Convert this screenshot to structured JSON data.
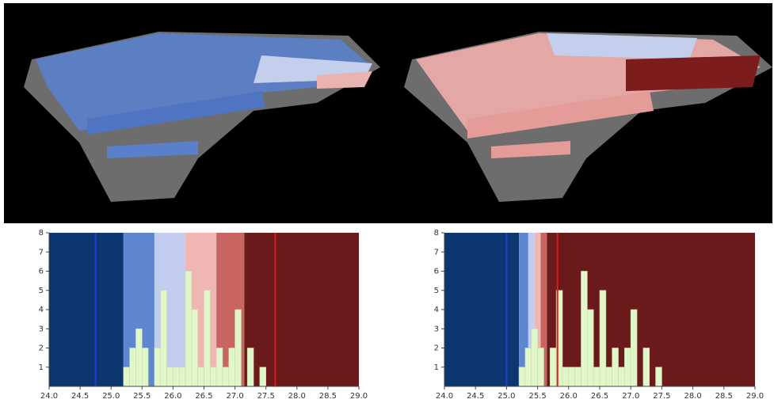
{
  "chart_data": [
    {
      "type": "histogram",
      "xlim": [
        24,
        29
      ],
      "ylim": [
        0,
        8
      ],
      "xticks": [
        {
          "value": 24,
          "label": "24.0"
        },
        {
          "value": 24.5,
          "label": "24.5"
        },
        {
          "value": 25,
          "label": "25.0"
        },
        {
          "value": 25.5,
          "label": "25.5"
        },
        {
          "value": 26,
          "label": "26.0"
        },
        {
          "value": 26.5,
          "label": "26.5"
        },
        {
          "value": 27,
          "label": "27.0"
        },
        {
          "value": 27.5,
          "label": "27.5"
        },
        {
          "value": 28,
          "label": "28.0"
        },
        {
          "value": 28.5,
          "label": "28.5"
        },
        {
          "value": 29,
          "label": "29.0"
        }
      ],
      "yticks": [
        1,
        2,
        3,
        4,
        5,
        6,
        7,
        8
      ],
      "bins": [
        25.2,
        25.3,
        25.4,
        25.5,
        25.6,
        25.7,
        25.8,
        25.9,
        26.0,
        26.1,
        26.2,
        26.3,
        26.4,
        26.5,
        26.6,
        26.7,
        26.8,
        26.9,
        27.0,
        27.1,
        27.2,
        27.3,
        27.4,
        27.5
      ],
      "values": [
        1,
        2,
        3,
        2,
        0,
        2,
        5,
        1,
        1,
        1,
        6,
        4,
        1,
        5,
        1,
        2,
        1,
        2,
        4,
        0,
        2,
        0,
        1
      ],
      "color": "#e2f7c9",
      "bands": [
        {
          "from": 24,
          "to": 25.2,
          "color": "#0c3670"
        },
        {
          "from": 25.2,
          "to": 25.7,
          "color": "#5d86cf"
        },
        {
          "from": 25.7,
          "to": 26.2,
          "color": "#c3cdf0"
        },
        {
          "from": 26.2,
          "to": 26.7,
          "color": "#efb6b4"
        },
        {
          "from": 26.7,
          "to": 27.15,
          "color": "#c96560"
        },
        {
          "from": 27.15,
          "to": 29,
          "color": "#6b1a1c"
        }
      ],
      "lines": [
        {
          "value": 24.75,
          "color": "#1d3fd8"
        },
        {
          "value": 27.65,
          "color": "#e01818"
        }
      ]
    },
    {
      "type": "histogram",
      "xlim": [
        24,
        29
      ],
      "ylim": [
        0,
        8
      ],
      "xticks": [
        {
          "value": 24,
          "label": "24.0"
        },
        {
          "value": 24.5,
          "label": "24.5"
        },
        {
          "value": 25,
          "label": "25.0"
        },
        {
          "value": 25.5,
          "label": "25.5"
        },
        {
          "value": 26,
          "label": "26.0"
        },
        {
          "value": 26.5,
          "label": "26.5"
        },
        {
          "value": 27,
          "label": "27.0"
        },
        {
          "value": 27.5,
          "label": "27.5"
        },
        {
          "value": 28,
          "label": "28.0"
        },
        {
          "value": 28.5,
          "label": "28.5"
        },
        {
          "value": 29,
          "label": "29.0"
        }
      ],
      "yticks": [
        1,
        2,
        3,
        4,
        5,
        6,
        7,
        8
      ],
      "bins": [
        25.2,
        25.3,
        25.4,
        25.5,
        25.6,
        25.7,
        25.8,
        25.9,
        26.0,
        26.1,
        26.2,
        26.3,
        26.4,
        26.5,
        26.6,
        26.7,
        26.8,
        26.9,
        27.0,
        27.1,
        27.2,
        27.3,
        27.4,
        27.5
      ],
      "values": [
        1,
        2,
        3,
        2,
        0,
        2,
        5,
        1,
        1,
        1,
        6,
        4,
        1,
        5,
        1,
        2,
        1,
        2,
        4,
        0,
        2,
        0,
        1
      ],
      "color": "#e2f7c9",
      "bands": [
        {
          "from": 24,
          "to": 25.2,
          "color": "#0c3670"
        },
        {
          "from": 25.2,
          "to": 25.35,
          "color": "#5d86cf"
        },
        {
          "from": 25.35,
          "to": 25.45,
          "color": "#c3cdf0"
        },
        {
          "from": 25.45,
          "to": 25.55,
          "color": "#efb6b4"
        },
        {
          "from": 25.55,
          "to": 25.65,
          "color": "#c96560"
        },
        {
          "from": 25.65,
          "to": 29,
          "color": "#6b1a1c"
        }
      ],
      "lines": [
        {
          "value": 25.0,
          "color": "#1d3fd8"
        },
        {
          "value": 25.82,
          "color": "#e01818"
        }
      ]
    }
  ]
}
